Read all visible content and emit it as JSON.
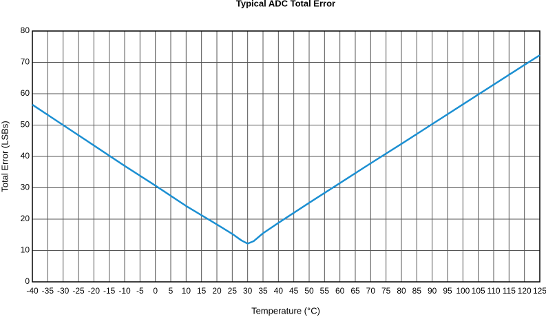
{
  "chart_data": {
    "type": "line",
    "title": "Typical ADC Total Error",
    "x_label": "Temperature (°C)",
    "y_label": "Total Error (LSBs)",
    "x": [
      -40,
      -30,
      -20,
      -10,
      0,
      10,
      20,
      25,
      28,
      30,
      32,
      35,
      40,
      50,
      60,
      70,
      80,
      90,
      100,
      110,
      120,
      125
    ],
    "series": [
      {
        "name": "Total Error",
        "color": "#1b8fd2",
        "values": [
          56.5,
          50,
          43.5,
          37,
          30.7,
          24.2,
          18.3,
          15.3,
          13.2,
          12.2,
          13,
          15.5,
          18.8,
          25.2,
          31.5,
          37.8,
          44,
          50.3,
          56.6,
          62.9,
          69.2,
          72.3
        ]
      }
    ],
    "xlim": [
      -40,
      125
    ],
    "xticks": [
      -40,
      -35,
      -30,
      -25,
      -20,
      -15,
      -10,
      -5,
      0,
      5,
      10,
      15,
      20,
      25,
      30,
      35,
      40,
      45,
      50,
      55,
      60,
      65,
      70,
      75,
      80,
      85,
      90,
      95,
      100,
      105,
      110,
      115,
      120,
      125
    ],
    "ylim": [
      0,
      80
    ],
    "yticks": [
      0,
      10,
      20,
      30,
      40,
      50,
      60,
      70,
      80
    ],
    "grid": true
  }
}
